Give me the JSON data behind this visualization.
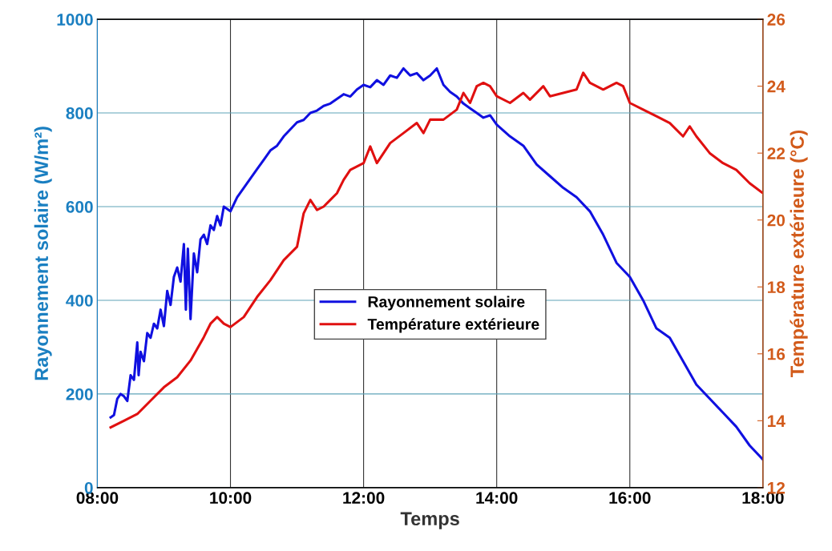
{
  "chart_data": {
    "type": "line",
    "xlabel": "Temps",
    "ylabel": "Rayonnement solaire (W/m²)",
    "y2label": "Température extérieure (°C)",
    "xlim": [
      8,
      18
    ],
    "xticks": [
      {
        "value": 8,
        "label": "08:00"
      },
      {
        "value": 10,
        "label": "10:00"
      },
      {
        "value": 12,
        "label": "12:00"
      },
      {
        "value": 14,
        "label": "14:00"
      },
      {
        "value": 16,
        "label": "16:00"
      },
      {
        "value": 18,
        "label": "18:00"
      }
    ],
    "ylim": [
      0,
      1000
    ],
    "yticks": [
      0,
      200,
      400,
      600,
      800,
      1000
    ],
    "y2lim": [
      12,
      26
    ],
    "y2ticks": [
      12,
      14,
      16,
      18,
      20,
      22,
      24,
      26
    ],
    "grid": true,
    "legend": "center",
    "marker": "none",
    "line_style": "solid",
    "series": [
      {
        "name": "Rayonnement solaire",
        "color": "#1010e0",
        "x": [
          8.2,
          8.25,
          8.3,
          8.35,
          8.4,
          8.45,
          8.5,
          8.55,
          8.6,
          8.62,
          8.65,
          8.7,
          8.75,
          8.8,
          8.85,
          8.9,
          8.95,
          9.0,
          9.05,
          9.1,
          9.15,
          9.2,
          9.25,
          9.3,
          9.33,
          9.36,
          9.4,
          9.45,
          9.5,
          9.55,
          9.6,
          9.65,
          9.7,
          9.75,
          9.8,
          9.85,
          9.9,
          10.0,
          10.1,
          10.2,
          10.3,
          10.4,
          10.5,
          10.6,
          10.7,
          10.8,
          10.9,
          11.0,
          11.1,
          11.2,
          11.3,
          11.4,
          11.5,
          11.6,
          11.7,
          11.8,
          11.9,
          12.0,
          12.1,
          12.2,
          12.3,
          12.4,
          12.5,
          12.6,
          12.7,
          12.8,
          12.9,
          13.0,
          13.1,
          13.2,
          13.3,
          13.4,
          13.5,
          13.6,
          13.7,
          13.8,
          13.9,
          14.0,
          14.2,
          14.4,
          14.6,
          14.8,
          15.0,
          15.2,
          15.4,
          15.6,
          15.8,
          16.0,
          16.2,
          16.4,
          16.6,
          16.8,
          17.0,
          17.2,
          17.4,
          17.6,
          17.8,
          18.0
        ],
        "values": [
          150,
          155,
          190,
          200,
          195,
          185,
          240,
          230,
          310,
          240,
          290,
          270,
          330,
          320,
          350,
          340,
          380,
          345,
          420,
          390,
          450,
          470,
          440,
          520,
          380,
          510,
          360,
          500,
          460,
          530,
          540,
          520,
          560,
          550,
          580,
          560,
          600,
          590,
          620,
          640,
          660,
          680,
          700,
          720,
          730,
          750,
          765,
          780,
          785,
          800,
          805,
          815,
          820,
          830,
          840,
          835,
          850,
          860,
          855,
          870,
          860,
          880,
          875,
          895,
          880,
          885,
          870,
          880,
          895,
          860,
          845,
          835,
          820,
          810,
          800,
          790,
          795,
          775,
          750,
          730,
          690,
          665,
          640,
          620,
          590,
          540,
          480,
          450,
          400,
          340,
          320,
          270,
          220,
          190,
          160,
          130,
          90,
          60
        ]
      },
      {
        "name": "Température extérieure",
        "color": "#e01010",
        "axis": "y2",
        "x": [
          8.2,
          8.4,
          8.6,
          8.8,
          9.0,
          9.2,
          9.4,
          9.6,
          9.7,
          9.8,
          9.9,
          10.0,
          10.2,
          10.4,
          10.6,
          10.8,
          11.0,
          11.1,
          11.2,
          11.3,
          11.4,
          11.5,
          11.6,
          11.7,
          11.8,
          12.0,
          12.1,
          12.2,
          12.4,
          12.6,
          12.8,
          12.9,
          13.0,
          13.2,
          13.4,
          13.5,
          13.6,
          13.7,
          13.8,
          13.9,
          14.0,
          14.2,
          14.4,
          14.5,
          14.7,
          14.8,
          15.0,
          15.2,
          15.3,
          15.4,
          15.6,
          15.8,
          15.9,
          16.0,
          16.2,
          16.4,
          16.6,
          16.8,
          16.9,
          17.0,
          17.2,
          17.4,
          17.6,
          17.8,
          18.0
        ],
        "values": [
          13.8,
          14.0,
          14.2,
          14.6,
          15.0,
          15.3,
          15.8,
          16.5,
          16.9,
          17.1,
          16.9,
          16.8,
          17.1,
          17.7,
          18.2,
          18.8,
          19.2,
          20.2,
          20.6,
          20.3,
          20.4,
          20.6,
          20.8,
          21.2,
          21.5,
          21.7,
          22.2,
          21.7,
          22.3,
          22.6,
          22.9,
          22.6,
          23.0,
          23.0,
          23.3,
          23.8,
          23.5,
          24.0,
          24.1,
          24.0,
          23.7,
          23.5,
          23.8,
          23.6,
          24.0,
          23.7,
          23.8,
          23.9,
          24.4,
          24.1,
          23.9,
          24.1,
          24.0,
          23.5,
          23.3,
          23.1,
          22.9,
          22.5,
          22.8,
          22.5,
          22.0,
          21.7,
          21.5,
          21.1,
          20.8
        ]
      }
    ]
  }
}
